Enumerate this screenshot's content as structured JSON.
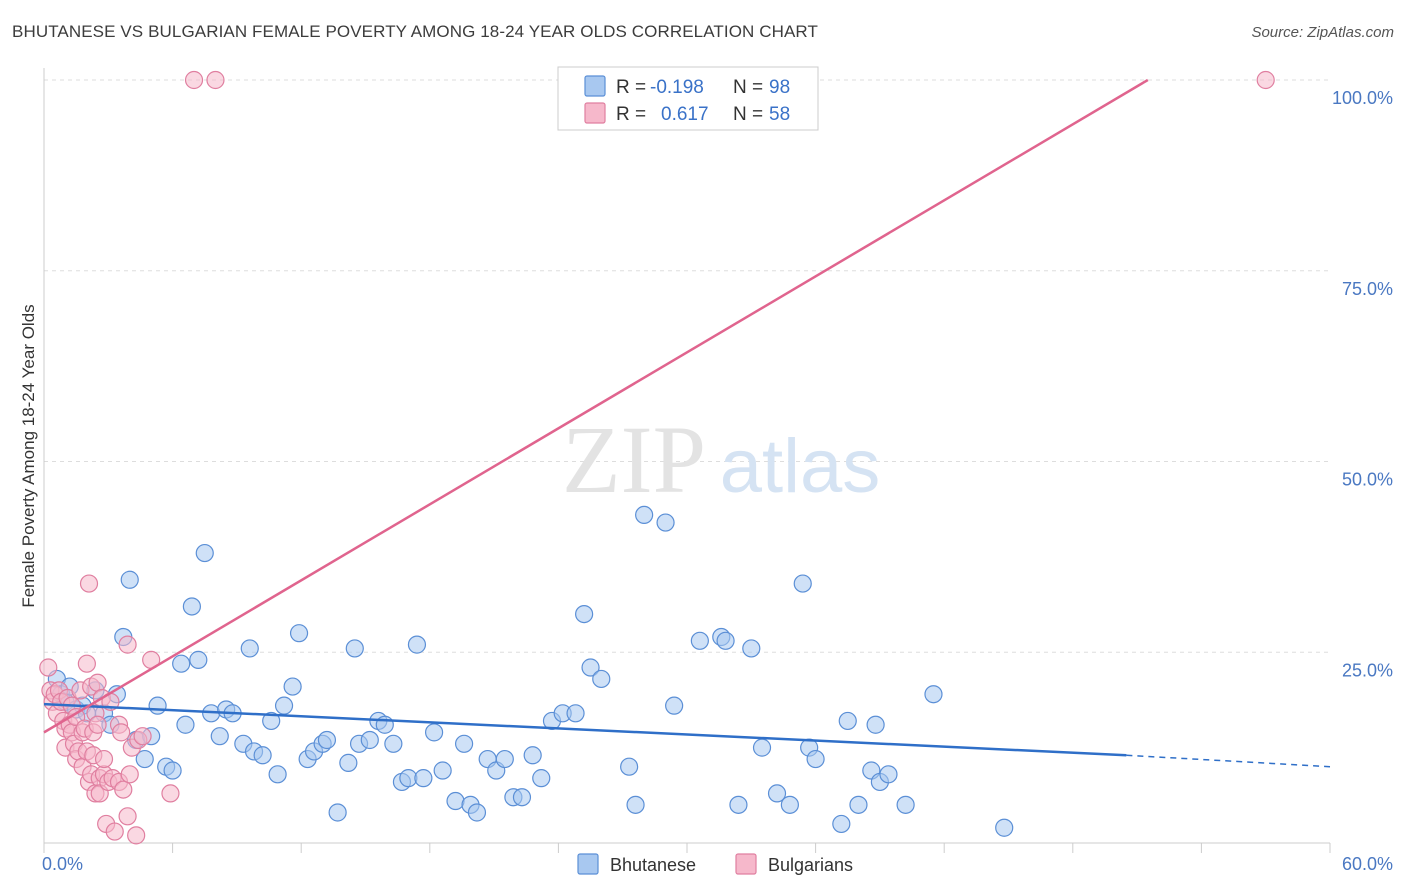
{
  "title": "BHUTANESE VS BULGARIAN FEMALE POVERTY AMONG 18-24 YEAR OLDS CORRELATION CHART",
  "source": "Source: ZipAtlas.com",
  "watermark": {
    "zip": "ZIP",
    "atlas": "atlas"
  },
  "colors": {
    "blue_fill": "#a8c8f0",
    "blue_stroke": "#5b8fd6",
    "blue_line": "#2f6fc8",
    "pink_fill": "#f6b8cb",
    "pink_stroke": "#e07fa0",
    "pink_line": "#e0648e",
    "grid": "#dddddd",
    "axis_text": "#4a78c2"
  },
  "legend": {
    "rows": [
      {
        "r_label": "R =",
        "r_value": "-0.198",
        "n_label": "N =",
        "n_value": "98"
      },
      {
        "r_label": "R =",
        "r_value": "0.617",
        "n_label": "N =",
        "n_value": "58"
      }
    ]
  },
  "chart_data": {
    "type": "scatter",
    "title": "BHUTANESE VS BULGARIAN FEMALE POVERTY AMONG 18-24 YEAR OLDS CORRELATION CHART",
    "xlabel": "",
    "ylabel": "Female Poverty Among 18-24 Year Olds",
    "xlim": [
      0,
      60
    ],
    "ylim": [
      0,
      100
    ],
    "x_tick_labels": [
      "0.0%",
      "60.0%"
    ],
    "y_tick_labels": [
      "25.0%",
      "50.0%",
      "75.0%",
      "100.0%"
    ],
    "y_ticks": [
      25,
      50,
      75,
      100
    ],
    "legend_position": "top-center",
    "series": [
      {
        "name": "Bhutanese",
        "color": "#a8c8f0",
        "r": -0.198,
        "n": 98,
        "trend": {
          "x0": 0,
          "y0": 18.2,
          "x1": 50.5,
          "y1": 11.5,
          "dash_to_x": 60,
          "dash_to_y": 10.0
        },
        "points": [
          [
            0.6,
            21.5
          ],
          [
            0.8,
            19.5
          ],
          [
            1.0,
            18.5
          ],
          [
            1.2,
            20.5
          ],
          [
            1.5,
            17.5
          ],
          [
            1.8,
            18.0
          ],
          [
            2.0,
            17.0
          ],
          [
            2.4,
            20.0
          ],
          [
            2.8,
            17.0
          ],
          [
            3.1,
            15.5
          ],
          [
            3.4,
            19.5
          ],
          [
            3.7,
            27.0
          ],
          [
            4.0,
            34.5
          ],
          [
            4.3,
            13.5
          ],
          [
            4.7,
            11.0
          ],
          [
            5.0,
            14.0
          ],
          [
            5.3,
            18.0
          ],
          [
            5.7,
            10.0
          ],
          [
            6.0,
            9.5
          ],
          [
            6.4,
            23.5
          ],
          [
            6.6,
            15.5
          ],
          [
            6.9,
            31.0
          ],
          [
            7.2,
            24.0
          ],
          [
            7.5,
            38.0
          ],
          [
            7.8,
            17.0
          ],
          [
            8.2,
            14.0
          ],
          [
            8.5,
            17.5
          ],
          [
            8.8,
            17.0
          ],
          [
            9.3,
            13.0
          ],
          [
            9.6,
            25.5
          ],
          [
            9.8,
            12.0
          ],
          [
            10.2,
            11.5
          ],
          [
            10.6,
            16.0
          ],
          [
            10.9,
            9.0
          ],
          [
            11.2,
            18.0
          ],
          [
            11.6,
            20.5
          ],
          [
            11.9,
            27.5
          ],
          [
            12.3,
            11.0
          ],
          [
            12.6,
            12.0
          ],
          [
            13.0,
            13.0
          ],
          [
            13.2,
            13.5
          ],
          [
            13.7,
            4.0
          ],
          [
            14.2,
            10.5
          ],
          [
            14.5,
            25.5
          ],
          [
            14.7,
            13.0
          ],
          [
            15.2,
            13.5
          ],
          [
            15.6,
            16.0
          ],
          [
            15.9,
            15.5
          ],
          [
            16.3,
            13.0
          ],
          [
            16.7,
            8.0
          ],
          [
            17.0,
            8.5
          ],
          [
            17.4,
            26.0
          ],
          [
            17.7,
            8.5
          ],
          [
            18.2,
            14.5
          ],
          [
            18.6,
            9.5
          ],
          [
            19.2,
            5.5
          ],
          [
            19.6,
            13.0
          ],
          [
            19.9,
            5.0
          ],
          [
            20.2,
            4.0
          ],
          [
            20.7,
            11.0
          ],
          [
            21.1,
            9.5
          ],
          [
            21.5,
            11.0
          ],
          [
            21.9,
            6.0
          ],
          [
            22.3,
            6.0
          ],
          [
            22.8,
            11.5
          ],
          [
            23.2,
            8.5
          ],
          [
            23.7,
            16.0
          ],
          [
            24.2,
            17.0
          ],
          [
            24.8,
            17.0
          ],
          [
            25.2,
            30.0
          ],
          [
            25.5,
            23.0
          ],
          [
            26.0,
            21.5
          ],
          [
            27.3,
            10.0
          ],
          [
            27.6,
            5.0
          ],
          [
            28.0,
            43.0
          ],
          [
            29.0,
            42.0
          ],
          [
            29.4,
            18.0
          ],
          [
            30.6,
            26.5
          ],
          [
            31.6,
            27.0
          ],
          [
            31.8,
            26.5
          ],
          [
            32.4,
            5.0
          ],
          [
            33.0,
            25.5
          ],
          [
            33.5,
            12.5
          ],
          [
            34.2,
            6.5
          ],
          [
            34.8,
            5.0
          ],
          [
            35.4,
            34.0
          ],
          [
            35.7,
            12.5
          ],
          [
            36.0,
            11.0
          ],
          [
            37.2,
            2.5
          ],
          [
            37.5,
            16.0
          ],
          [
            38.0,
            5.0
          ],
          [
            38.6,
            9.5
          ],
          [
            38.8,
            15.5
          ],
          [
            39.0,
            8.0
          ],
          [
            39.4,
            9.0
          ],
          [
            40.2,
            5.0
          ],
          [
            41.5,
            19.5
          ],
          [
            44.8,
            2.0
          ]
        ]
      },
      {
        "name": "Bulgarians",
        "color": "#f6b8cb",
        "r": 0.617,
        "n": 58,
        "trend": {
          "x0": 0,
          "y0": 14.5,
          "x1": 51.5,
          "y1": 100.0
        },
        "points": [
          [
            0.2,
            23.0
          ],
          [
            0.3,
            20.0
          ],
          [
            0.4,
            18.5
          ],
          [
            0.5,
            19.5
          ],
          [
            0.6,
            17.0
          ],
          [
            0.7,
            20.0
          ],
          [
            0.8,
            18.5
          ],
          [
            0.9,
            16.0
          ],
          [
            1.0,
            15.0
          ],
          [
            1.0,
            12.5
          ],
          [
            1.1,
            19.0
          ],
          [
            1.2,
            15.5
          ],
          [
            1.3,
            14.5
          ],
          [
            1.3,
            18.0
          ],
          [
            1.4,
            13.0
          ],
          [
            1.5,
            11.0
          ],
          [
            1.5,
            16.5
          ],
          [
            1.6,
            12.0
          ],
          [
            1.7,
            20.0
          ],
          [
            1.8,
            10.0
          ],
          [
            1.8,
            14.5
          ],
          [
            1.9,
            15.0
          ],
          [
            2.0,
            12.0
          ],
          [
            2.0,
            23.5
          ],
          [
            2.1,
            8.0
          ],
          [
            2.1,
            34.0
          ],
          [
            2.2,
            9.0
          ],
          [
            2.2,
            20.5
          ],
          [
            2.3,
            11.5
          ],
          [
            2.3,
            14.5
          ],
          [
            2.4,
            6.5
          ],
          [
            2.4,
            17.0
          ],
          [
            2.5,
            15.5
          ],
          [
            2.5,
            21.0
          ],
          [
            2.6,
            8.5
          ],
          [
            2.6,
            6.5
          ],
          [
            2.7,
            19.0
          ],
          [
            2.8,
            9.0
          ],
          [
            2.8,
            11.0
          ],
          [
            2.9,
            2.5
          ],
          [
            3.0,
            8.0
          ],
          [
            3.1,
            18.5
          ],
          [
            3.2,
            8.5
          ],
          [
            3.3,
            1.5
          ],
          [
            3.5,
            8.0
          ],
          [
            3.5,
            15.5
          ],
          [
            3.6,
            14.5
          ],
          [
            3.7,
            7.0
          ],
          [
            3.9,
            3.5
          ],
          [
            3.9,
            26.0
          ],
          [
            4.0,
            9.0
          ],
          [
            4.1,
            12.5
          ],
          [
            4.3,
            1.0
          ],
          [
            4.4,
            13.5
          ],
          [
            4.6,
            14.0
          ],
          [
            5.0,
            24.0
          ],
          [
            5.9,
            6.5
          ],
          [
            57.0,
            100.0
          ]
        ],
        "extra_points": [
          [
            7.0,
            100.0
          ],
          [
            8.0,
            100.0
          ]
        ]
      }
    ]
  },
  "bottom_legend": [
    {
      "label": "Bhutanese"
    },
    {
      "label": "Bulgarians"
    }
  ]
}
